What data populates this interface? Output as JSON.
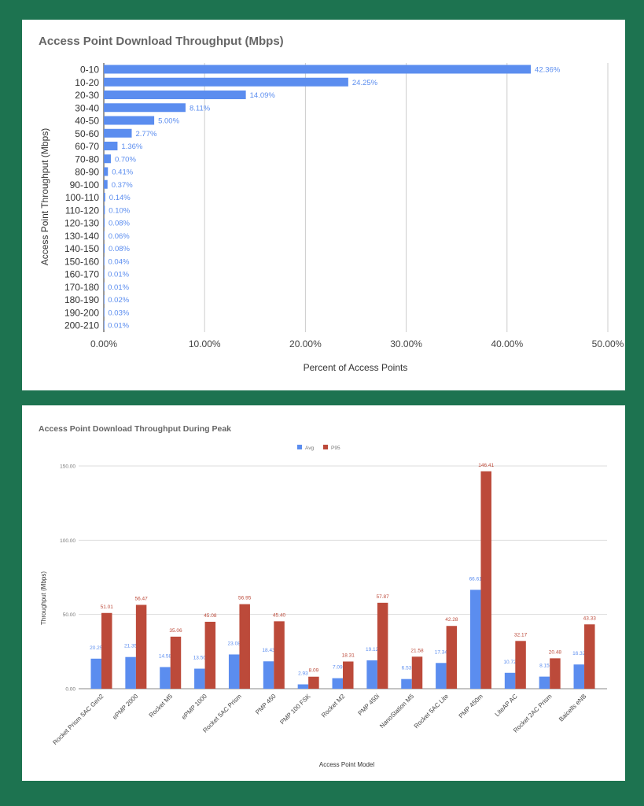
{
  "chart_data": [
    {
      "type": "bar",
      "orientation": "horizontal",
      "title": "Access Point Download Throughput (Mbps)",
      "xlabel": "Percent of Access Points",
      "ylabel": "Access Point Throughput (Mbps)",
      "xlim": [
        0,
        50
      ],
      "xticks": [
        "0.00%",
        "10.00%",
        "20.00%",
        "30.00%",
        "40.00%",
        "50.00%"
      ],
      "grid": true,
      "color": "#5b8def",
      "categories": [
        "0-10",
        "10-20",
        "20-30",
        "30-40",
        "40-50",
        "50-60",
        "60-70",
        "70-80",
        "80-90",
        "90-100",
        "100-110",
        "110-120",
        "120-130",
        "130-140",
        "140-150",
        "150-160",
        "160-170",
        "170-180",
        "180-190",
        "190-200",
        "200-210"
      ],
      "values": [
        42.36,
        24.25,
        14.09,
        8.11,
        5.0,
        2.77,
        1.36,
        0.7,
        0.41,
        0.37,
        0.14,
        0.1,
        0.08,
        0.06,
        0.08,
        0.04,
        0.01,
        0.01,
        0.02,
        0.03,
        0.01
      ],
      "labels": [
        "42.36%",
        "24.25%",
        "14.09%",
        "8.11%",
        "5.00%",
        "2.77%",
        "1.36%",
        "0.70%",
        "0.41%",
        "0.37%",
        "0.14%",
        "0.10%",
        "0.08%",
        "0.06%",
        "0.08%",
        "0.04%",
        "0.01%",
        "0.01%",
        "0.02%",
        "0.03%",
        "0.01%"
      ]
    },
    {
      "type": "bar",
      "title": "Access Point Download Throughput During Peak",
      "xlabel": "Access Point Model",
      "ylabel": "Throughput (Mbps)",
      "ylim": [
        0,
        150
      ],
      "yticks": [
        "0.00",
        "50.00",
        "100.00",
        "150.00"
      ],
      "grid": true,
      "legend": "top",
      "categories": [
        "Rocket Prism 5AC Gen2",
        "ePMP 2000",
        "Rocket M5",
        "ePMP 1000",
        "Rocket 5AC Prism",
        "PMP 450",
        "PMP 100 FSK",
        "Rocket M2",
        "PMP 450i",
        "NanoStation M5",
        "Rocket 5AC Lite",
        "PMP 450m",
        "LiteAP AC",
        "Rocket 2AC Prism",
        "Baicells eNB"
      ],
      "series": [
        {
          "name": "Avg",
          "color": "#5b8def",
          "values": [
            20.25,
            21.35,
            14.58,
            13.5,
            23.08,
            18.43,
            2.93,
            7.09,
            19.12,
            6.53,
            17.34,
            66.61,
            10.72,
            8.15,
            16.32
          ],
          "labels": [
            "20.25",
            "21.35",
            "14.58",
            "13.50",
            "23.08",
            "18.43",
            "2.93",
            "7.09",
            "19.12",
            "6.53",
            "17.34",
            "66.61",
            "10.72",
            "8.15",
            "16.32"
          ]
        },
        {
          "name": "P95",
          "color": "#bc4a3a",
          "values": [
            51.01,
            56.47,
            35.06,
            45.08,
            56.95,
            45.4,
            8.09,
            18.31,
            57.87,
            21.58,
            42.28,
            146.41,
            32.17,
            20.48,
            43.33
          ],
          "labels": [
            "51.01",
            "56.47",
            "35.06",
            "45.08",
            "56.95",
            "45.40",
            "8.09",
            "18.31",
            "57.87",
            "21.58",
            "42.28",
            "146.41",
            "32.17",
            "20.48",
            "43.33"
          ]
        }
      ]
    }
  ]
}
